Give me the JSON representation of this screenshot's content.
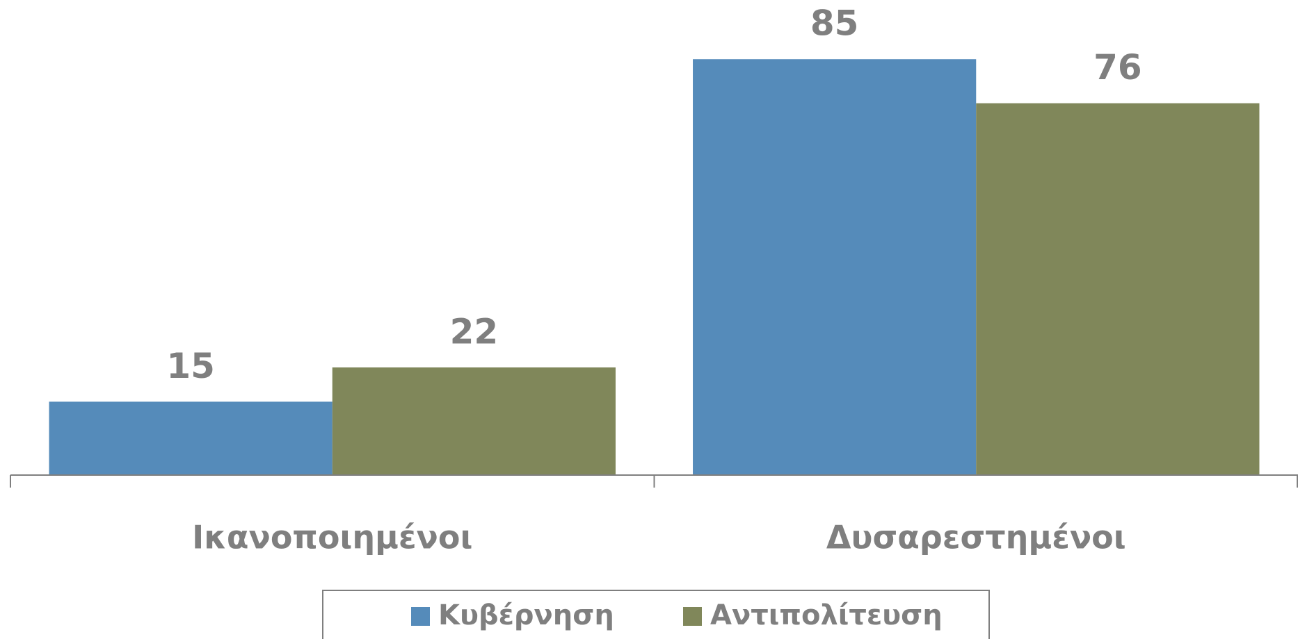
{
  "chart_data": {
    "type": "bar",
    "categories": [
      "Ικανοποιημένοι",
      "Δυσαρεστημένοι"
    ],
    "series": [
      {
        "name": "Κυβέρνηση",
        "color": "#558bba",
        "values": [
          15,
          85
        ]
      },
      {
        "name": "Αντιπολίτευση",
        "color": "#80875a",
        "values": [
          22,
          76
        ]
      }
    ],
    "ylim": [
      0,
      90
    ]
  }
}
